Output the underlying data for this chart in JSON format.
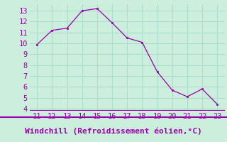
{
  "x": [
    11,
    12,
    13,
    14,
    15,
    16,
    17,
    18,
    19,
    20,
    21,
    22,
    23
  ],
  "y": [
    9.9,
    11.2,
    11.4,
    13.0,
    13.2,
    11.9,
    10.5,
    10.1,
    7.4,
    5.7,
    5.1,
    5.8,
    4.4
  ],
  "line_color": "#9900aa",
  "marker_color": "#9900aa",
  "bg_color": "#cceedd",
  "grid_color": "#aaddcc",
  "separator_color": "#9900aa",
  "xlabel": "Windchill (Refroidissement éolien,°C)",
  "xlim": [
    10.5,
    23.5
  ],
  "ylim": [
    3.8,
    13.6
  ],
  "xticks": [
    11,
    12,
    13,
    14,
    15,
    16,
    17,
    18,
    19,
    20,
    21,
    22,
    23
  ],
  "yticks": [
    4,
    5,
    6,
    7,
    8,
    9,
    10,
    11,
    12,
    13
  ],
  "font_color": "#9900aa",
  "tick_fontsize": 7.5,
  "label_fontsize": 8
}
